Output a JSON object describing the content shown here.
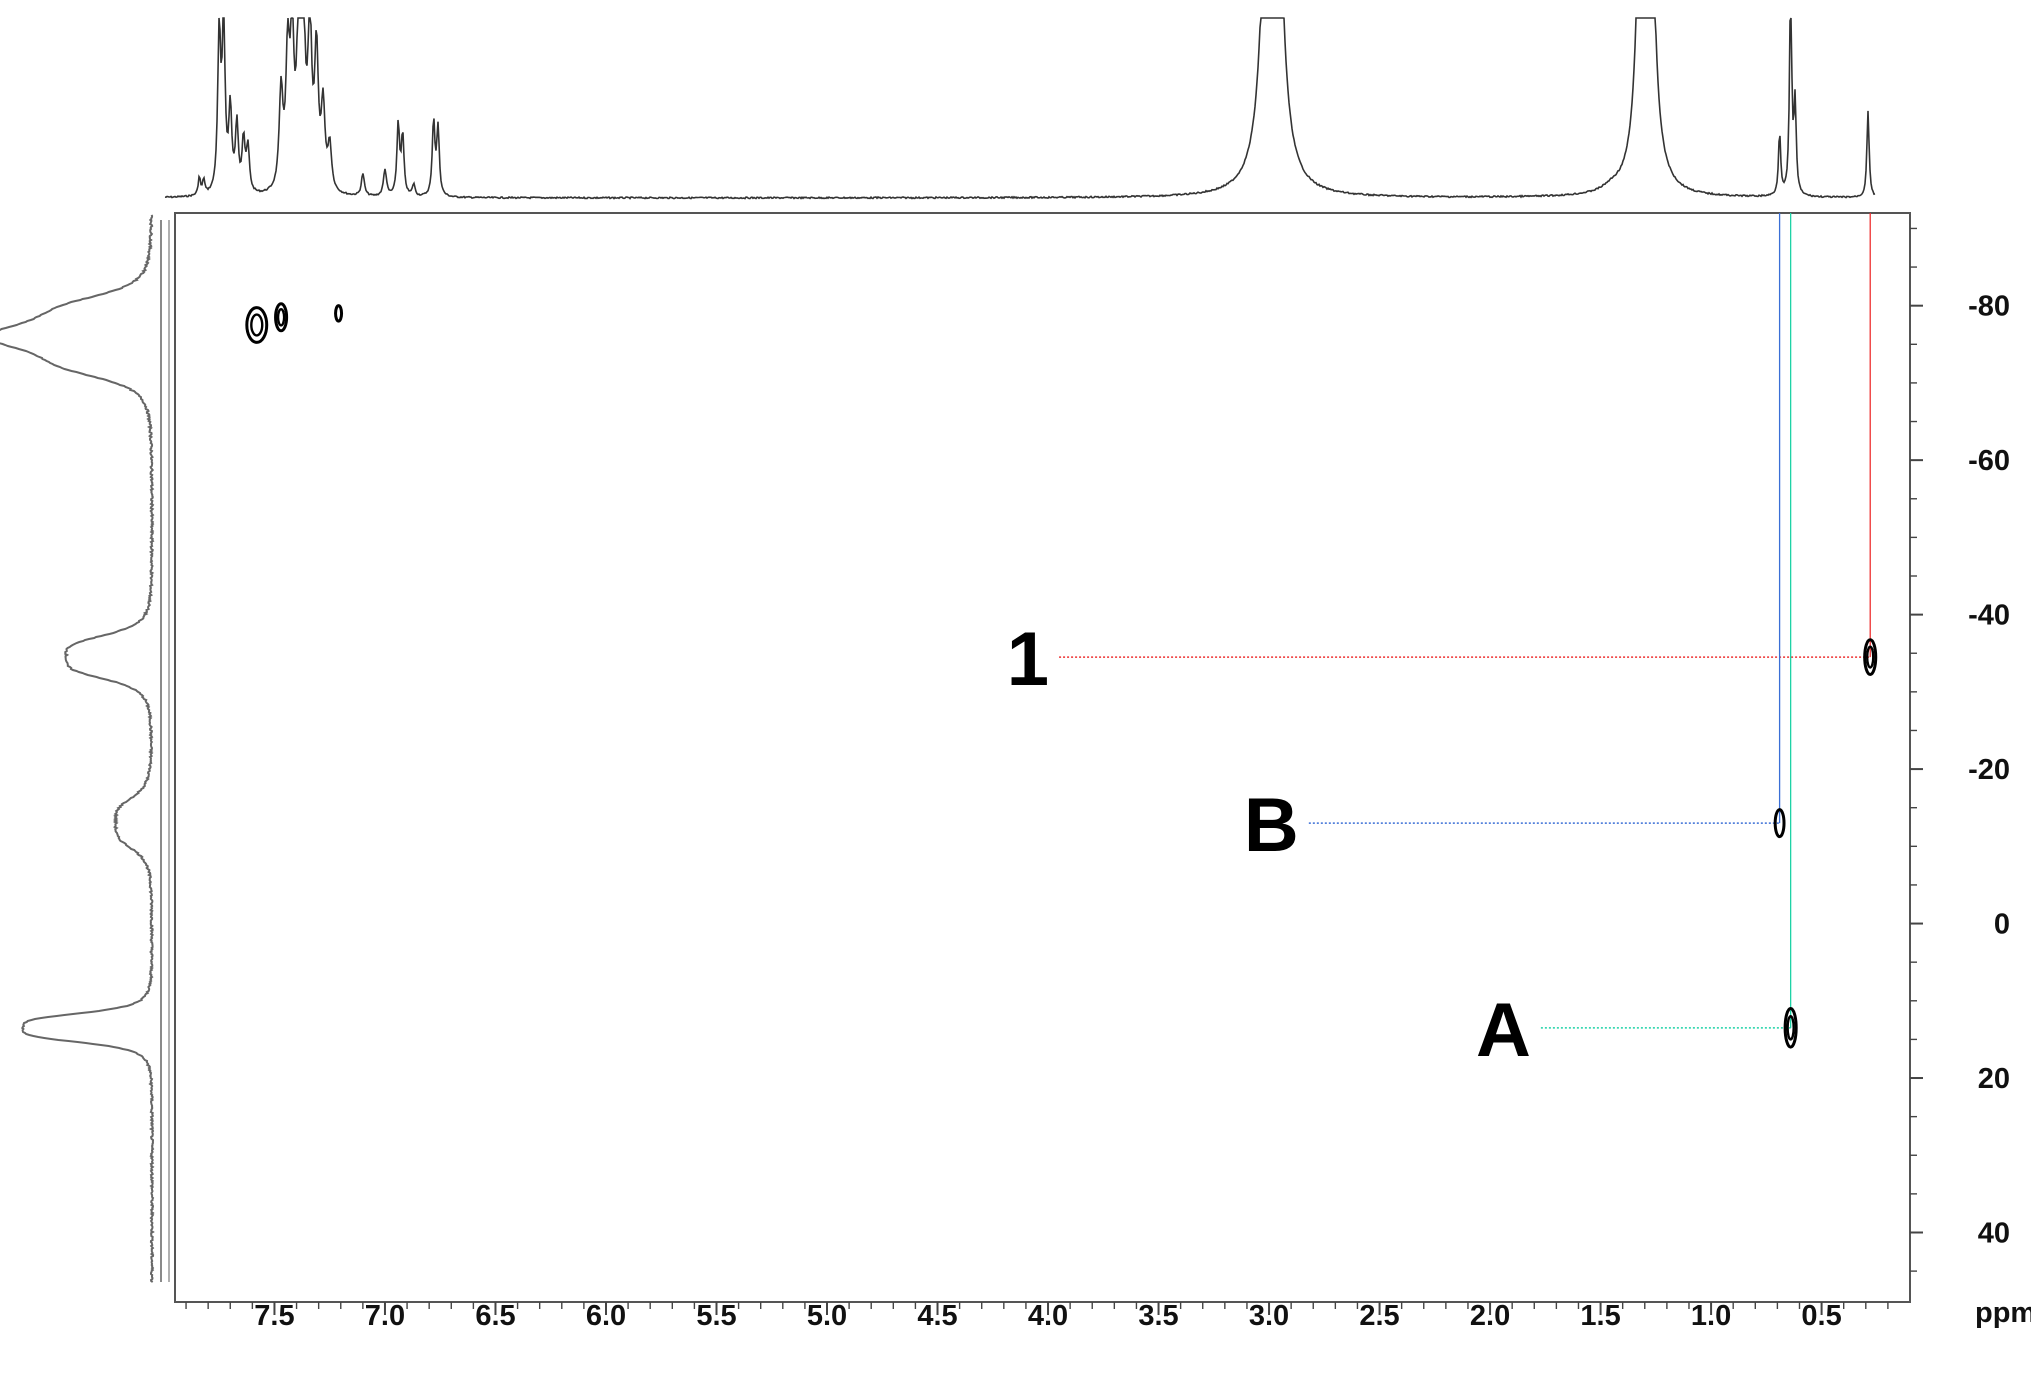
{
  "chart_data": {
    "type": "scatter",
    "title": "",
    "xlabel": "ppm",
    "ylabel": "",
    "x_axis": {
      "range": [
        7.95,
        0.1
      ],
      "reversed": true,
      "major_ticks": [
        7.5,
        7.0,
        6.5,
        6.0,
        5.5,
        5.0,
        4.5,
        4.0,
        3.5,
        3.0,
        2.5,
        2.0,
        1.5,
        1.0,
        0.5
      ],
      "tick_labels": [
        "7.5",
        "7.0",
        "6.5",
        "6.0",
        "5.5",
        "5.0",
        "4.5",
        "4.0",
        "3.5",
        "3.0",
        "2.5",
        "2.0",
        "1.5",
        "1.0",
        "0.5"
      ],
      "unit_label": "ppm"
    },
    "y_axis": {
      "range": [
        -92,
        49
      ],
      "position": "right",
      "major_ticks": [
        -80,
        -60,
        -40,
        -20,
        0,
        20,
        40
      ],
      "tick_labels": [
        "-80",
        "-60",
        "-40",
        "-20",
        "0",
        "20",
        "40"
      ]
    },
    "grid": false,
    "cross_peaks": [
      {
        "x": 7.58,
        "y": -77.5,
        "w": 0.09,
        "h": 4.5
      },
      {
        "x": 7.47,
        "y": -78.5,
        "w": 0.05,
        "h": 3.5
      },
      {
        "x": 7.21,
        "y": -79.0,
        "w": 0.02,
        "h": 2.0
      },
      {
        "x": 0.28,
        "y": -34.5,
        "w": 0.05,
        "h": 4.5,
        "label": "1"
      },
      {
        "x": 0.69,
        "y": -13.0,
        "w": 0.04,
        "h": 3.5,
        "label": "B"
      },
      {
        "x": 0.64,
        "y": 13.5,
        "w": 0.05,
        "h": 5.0,
        "label": "A"
      }
    ],
    "annotations": [
      {
        "text": "1",
        "peak_x": 0.28,
        "peak_y": -34.5,
        "line_from_x": 3.95,
        "color": "#ee3030"
      },
      {
        "text": "B",
        "peak_x": 0.69,
        "peak_y": -13.0,
        "line_from_x": 2.82,
        "color": "#3a6fd6"
      },
      {
        "text": "A",
        "peak_x": 0.64,
        "peak_y": 13.5,
        "line_from_x": 1.77,
        "color": "#1fd2a6"
      }
    ],
    "f2_projection": {
      "peaks": [
        {
          "x": 7.84,
          "h": 0.12,
          "w": 0.006
        },
        {
          "x": 7.82,
          "h": 0.1,
          "w": 0.006
        },
        {
          "x": 7.75,
          "h": 1.05,
          "w": 0.008
        },
        {
          "x": 7.73,
          "h": 1.1,
          "w": 0.008
        },
        {
          "x": 7.7,
          "h": 0.55,
          "w": 0.008
        },
        {
          "x": 7.67,
          "h": 0.45,
          "w": 0.008
        },
        {
          "x": 7.64,
          "h": 0.35,
          "w": 0.008
        },
        {
          "x": 7.62,
          "h": 0.3,
          "w": 0.008
        },
        {
          "x": 7.47,
          "h": 0.65,
          "w": 0.01
        },
        {
          "x": 7.44,
          "h": 0.85,
          "w": 0.01
        },
        {
          "x": 7.42,
          "h": 0.95,
          "w": 0.01
        },
        {
          "x": 7.39,
          "h": 1.1,
          "w": 0.01
        },
        {
          "x": 7.37,
          "h": 1.15,
          "w": 0.01
        },
        {
          "x": 7.34,
          "h": 1.1,
          "w": 0.01
        },
        {
          "x": 7.31,
          "h": 0.9,
          "w": 0.01
        },
        {
          "x": 7.28,
          "h": 0.55,
          "w": 0.01
        },
        {
          "x": 7.25,
          "h": 0.3,
          "w": 0.01
        },
        {
          "x": 7.1,
          "h": 0.15,
          "w": 0.008
        },
        {
          "x": 7.0,
          "h": 0.18,
          "w": 0.008
        },
        {
          "x": 6.94,
          "h": 0.48,
          "w": 0.007
        },
        {
          "x": 6.92,
          "h": 0.4,
          "w": 0.007
        },
        {
          "x": 6.87,
          "h": 0.08,
          "w": 0.007
        },
        {
          "x": 6.78,
          "h": 0.5,
          "w": 0.007
        },
        {
          "x": 6.76,
          "h": 0.45,
          "w": 0.007
        },
        {
          "x": 3.0,
          "h": 2.6,
          "w": 0.028
        },
        {
          "x": 2.97,
          "h": 2.3,
          "w": 0.028
        },
        {
          "x": 1.45,
          "h": 0.03,
          "w": 0.05
        },
        {
          "x": 1.31,
          "h": 2.6,
          "w": 0.022
        },
        {
          "x": 1.28,
          "h": 2.3,
          "w": 0.022
        },
        {
          "x": 0.69,
          "h": 0.42,
          "w": 0.006
        },
        {
          "x": 0.64,
          "h": 1.4,
          "w": 0.006
        },
        {
          "x": 0.62,
          "h": 0.6,
          "w": 0.006
        },
        {
          "x": 0.29,
          "h": 0.58,
          "w": 0.006
        }
      ]
    },
    "f1_projection": {
      "peaks": [
        {
          "y": -78.0,
          "h": 0.55,
          "w": 3.5
        },
        {
          "y": -74.0,
          "h": 0.55,
          "w": 3.5
        },
        {
          "y": -34.5,
          "h": 0.52,
          "w": 3.0
        },
        {
          "y": -13.0,
          "h": 0.22,
          "w": 3.5
        },
        {
          "y": 13.5,
          "h": 0.78,
          "w": 2.0
        }
      ]
    }
  }
}
